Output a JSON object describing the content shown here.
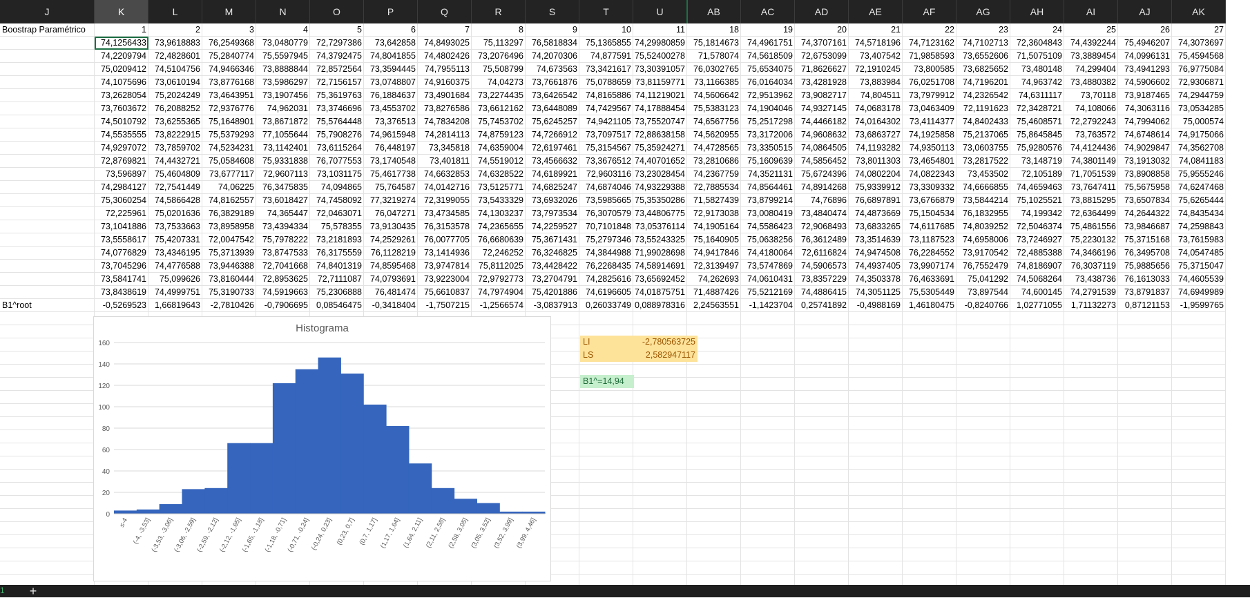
{
  "columns": [
    "J",
    "K",
    "L",
    "M",
    "N",
    "O",
    "P",
    "Q",
    "R",
    "S",
    "T",
    "U",
    "AB",
    "AC",
    "AD",
    "AE",
    "AF",
    "AG",
    "AH",
    "AI",
    "AJ",
    "AK"
  ],
  "selected_column": "K",
  "row_label_header": "Boostrap Paramétrico",
  "header_numbers": [
    "1",
    "2",
    "3",
    "4",
    "5",
    "6",
    "7",
    "8",
    "9",
    "10",
    "11",
    "18",
    "19",
    "20",
    "21",
    "22",
    "23",
    "24",
    "25",
    "26",
    "27"
  ],
  "data_rows": [
    [
      "74,1256433",
      "73,9618883",
      "76,2549368",
      "73,0480779",
      "72,7297386",
      "73,642858",
      "74,8493025",
      "75,113297",
      "76,5818834",
      "75,1365855",
      "74,29980859",
      "75,1814673",
      "74,4961751",
      "74,3707161",
      "74,5718196",
      "74,7123162",
      "74,7102713",
      "72,3604843",
      "74,4392244",
      "75,4946207",
      "74,3073697"
    ],
    [
      "74,2209794",
      "72,4828601",
      "75,2840774",
      "75,5597945",
      "74,3792475",
      "74,8041855",
      "74,4802426",
      "73,2076496",
      "74,2070306",
      "74,877591",
      "75,52400278",
      "71,578074",
      "74,5618509",
      "72,6753099",
      "73,407542",
      "71,9858593",
      "73,6552606",
      "71,5075109",
      "73,3889454",
      "74,0996131",
      "75,4594568"
    ],
    [
      "75,0209412",
      "74,5104756",
      "74,9466346",
      "73,8888844",
      "72,8572564",
      "73,3594445",
      "74,7955113",
      "75,508799",
      "74,673563",
      "73,3421617",
      "73,30391057",
      "76,0302765",
      "75,6534075",
      "71,8626627",
      "72,1910245",
      "73,800585",
      "73,6825652",
      "73,480148",
      "74,299404",
      "73,4941293",
      "76,9775084"
    ],
    [
      "74,1075696",
      "73,0610194",
      "73,8776168",
      "73,5986297",
      "72,7156157",
      "73,0748807",
      "74,9160375",
      "74,04273",
      "73,7661876",
      "75,0788659",
      "73,81159771",
      "73,1166385",
      "76,0164034",
      "73,4281928",
      "73,883984",
      "76,0251708",
      "74,7196201",
      "74,963742",
      "73,4880382",
      "74,5906602",
      "72,9306871"
    ],
    [
      "73,2628054",
      "75,2024249",
      "73,4643951",
      "73,1907456",
      "75,3619763",
      "76,1884637",
      "73,4901684",
      "73,2274435",
      "73,6426542",
      "74,8165886",
      "74,11219021",
      "74,5606642",
      "72,9513962",
      "73,9082717",
      "74,804511",
      "73,7979912",
      "74,2326542",
      "74,6311117",
      "73,70118",
      "73,9187465",
      "74,2944759"
    ],
    [
      "73,7603672",
      "76,2088252",
      "72,9376776",
      "74,962031",
      "73,3746696",
      "73,4553702",
      "73,8276586",
      "73,6612162",
      "73,6448089",
      "74,7429567",
      "74,17888454",
      "75,5383123",
      "74,1904046",
      "74,9327145",
      "74,0683178",
      "73,0463409",
      "72,1191623",
      "72,3428721",
      "74,108066",
      "74,3063116",
      "73,0534285"
    ],
    [
      "74,5010792",
      "73,6255365",
      "75,1648901",
      "73,8671872",
      "75,5764448",
      "73,376513",
      "74,7834208",
      "75,7453702",
      "75,6245257",
      "74,9421105",
      "73,75520747",
      "74,6567756",
      "75,2517298",
      "74,4466182",
      "74,0164302",
      "73,4114377",
      "74,8402433",
      "75,4608571",
      "72,2792243",
      "74,7994062",
      "75,000574"
    ],
    [
      "74,5535555",
      "73,8222915",
      "75,5379293",
      "77,1055644",
      "75,7908276",
      "74,9615948",
      "74,2814113",
      "74,8759123",
      "74,7266912",
      "73,7097517",
      "72,88638158",
      "74,5620955",
      "73,3172006",
      "74,9608632",
      "73,6863727",
      "74,1925858",
      "75,2137065",
      "75,8645845",
      "73,763572",
      "74,6748614",
      "74,9175066"
    ],
    [
      "74,9297072",
      "73,7859702",
      "74,5234231",
      "73,1142401",
      "73,6115264",
      "76,448197",
      "73,345818",
      "74,6359004",
      "72,6197461",
      "75,3154567",
      "75,35924271",
      "74,4728565",
      "73,3350515",
      "74,0864505",
      "74,1193282",
      "74,9350113",
      "73,0603755",
      "75,9280576",
      "74,4124436",
      "74,9029847",
      "74,3562708"
    ],
    [
      "72,8769821",
      "74,4432721",
      "75,0584608",
      "75,9331838",
      "76,7077553",
      "73,1740548",
      "73,401811",
      "74,5519012",
      "73,4566632",
      "73,3676512",
      "74,40701652",
      "73,2810686",
      "75,1609639",
      "74,5856452",
      "73,8011303",
      "73,4654801",
      "73,2817522",
      "73,148719",
      "74,3801149",
      "73,1913032",
      "74,0841183"
    ],
    [
      "73,596897",
      "75,4604809",
      "73,6777117",
      "72,9607113",
      "73,1031175",
      "75,4617738",
      "74,6632853",
      "74,6328522",
      "74,6189921",
      "72,9603116",
      "73,23028454",
      "74,2367759",
      "74,3521131",
      "75,6724396",
      "74,0802204",
      "74,0822343",
      "73,453502",
      "72,105189",
      "71,7051539",
      "73,8908858",
      "75,9555246"
    ],
    [
      "74,2984127",
      "72,7541449",
      "74,06225",
      "76,3475835",
      "74,094865",
      "75,764587",
      "74,0142716",
      "73,5125771",
      "74,6825247",
      "74,6874046",
      "74,93229388",
      "72,7885534",
      "74,8564461",
      "74,8914268",
      "75,9339912",
      "73,3309332",
      "74,6666855",
      "74,4659463",
      "73,7647411",
      "75,5675958",
      "74,6247468"
    ],
    [
      "75,3060254",
      "74,5866428",
      "74,8162557",
      "73,6018427",
      "74,7458092",
      "77,3219274",
      "72,3199055",
      "73,5433329",
      "73,6932026",
      "73,5985665",
      "75,35350286",
      "71,5827439",
      "73,8799214",
      "74,76896",
      "76,6897891",
      "73,6766879",
      "73,5844214",
      "75,1025521",
      "73,8815295",
      "73,6507834",
      "75,6265444"
    ],
    [
      "72,225961",
      "75,0201636",
      "76,3829189",
      "74,365447",
      "72,0463071",
      "76,047271",
      "73,4734585",
      "74,1303237",
      "73,7973534",
      "76,3070579",
      "73,44806775",
      "72,9173038",
      "73,0080419",
      "73,4840474",
      "74,4873669",
      "75,1504534",
      "76,1832955",
      "74,199342",
      "72,6364499",
      "74,2644322",
      "74,8435434"
    ],
    [
      "73,1041886",
      "73,7533663",
      "73,8958958",
      "73,4394334",
      "75,578355",
      "73,9130435",
      "76,3153578",
      "74,2365655",
      "74,2259527",
      "70,7101848",
      "73,05376114",
      "74,1905164",
      "74,5586423",
      "72,9068493",
      "73,6833265",
      "74,6117685",
      "74,8039252",
      "72,5046374",
      "75,4861556",
      "73,9846687",
      "74,2598843"
    ],
    [
      "73,5558617",
      "75,4207331",
      "72,0047542",
      "75,7978222",
      "73,2181893",
      "74,2529261",
      "76,0077705",
      "76,6680639",
      "75,3671431",
      "75,2797346",
      "73,55243325",
      "75,1640905",
      "75,0638256",
      "76,3612489",
      "73,3514639",
      "73,1187523",
      "74,6958006",
      "73,7246927",
      "75,2230132",
      "75,3715168",
      "73,7615983"
    ],
    [
      "74,0776829",
      "73,4346195",
      "75,3713939",
      "73,8747533",
      "76,3175559",
      "76,1128219",
      "73,1414936",
      "72,246252",
      "76,3246825",
      "74,3844988",
      "71,99028698",
      "74,9417846",
      "74,4180064",
      "72,6116824",
      "74,9474508",
      "76,2284552",
      "73,9170542",
      "72,4885388",
      "74,3466196",
      "76,3495708",
      "74,0547485"
    ],
    [
      "73,7045296",
      "74,4776588",
      "73,9446388",
      "72,7041668",
      "74,8401319",
      "74,8595468",
      "73,9747814",
      "75,8112025",
      "73,4428422",
      "76,2268435",
      "74,58914691",
      "72,3139497",
      "73,5747869",
      "74,5906573",
      "74,4937405",
      "73,9907174",
      "76,7552479",
      "74,8186907",
      "76,3037119",
      "75,9885656",
      "75,3715047"
    ],
    [
      "73,5841741",
      "75,099626",
      "73,8160444",
      "72,8953625",
      "72,7111087",
      "74,0793691",
      "73,9223004",
      "72,9792773",
      "73,2704791",
      "74,2825616",
      "73,65692452",
      "74,262693",
      "74,0610431",
      "73,8357229",
      "74,3503378",
      "76,4633691",
      "75,041292",
      "74,5068264",
      "73,438736",
      "76,1613033",
      "74,4605539"
    ],
    [
      "73,8438619",
      "74,4999751",
      "75,3190733",
      "74,5919663",
      "75,2306888",
      "76,481474",
      "75,6610837",
      "74,7974904",
      "75,4201886",
      "74,6196605",
      "74,01875751",
      "71,4887426",
      "75,5212169",
      "74,4886415",
      "74,3051125",
      "75,5305449",
      "73,897544",
      "74,600145",
      "74,2791539",
      "73,8791837",
      "74,6949989"
    ]
  ],
  "root_label": "B1^root",
  "root_row": [
    "-0,5269523",
    "1,66819643",
    "-2,7810426",
    "-0,7906695",
    "0,08546475",
    "-0,3418404",
    "-1,7507215",
    "-1,2566574",
    "-3,0837913",
    "0,26033749",
    "0,088978316",
    "2,24563551",
    "-1,1423704",
    "0,25741892",
    "-0,4988169",
    "1,46180475",
    "-0,8240766",
    "1,02771055",
    "1,71132273",
    "0,87121153",
    "-1,9599765"
  ],
  "limits": {
    "li_label": "LI",
    "li_value": "-2,780563725",
    "ls_label": "LS",
    "ls_value": "2,582947117"
  },
  "estimate": "B1^=14,94",
  "colors": {
    "bar": "#3565bd",
    "highlight_yellow": "#fde29a",
    "highlight_text": "#9c5700",
    "estimate_green": "#c6efce",
    "estimate_text": "#1e6b38",
    "selection": "#1d7044"
  },
  "chart_data": {
    "type": "bar",
    "title": "Histograma",
    "categories": [
      "≤-4",
      "(-4, -3,53]",
      "(-3,53, -3,06]",
      "(-3,06, -2,59]",
      "(-2,59, -2,12]",
      "(-2,12, -1,65]",
      "(-1,65, -1,18]",
      "(-1,18, -0,71]",
      "(-0,71, -0,24]",
      "(-0,24, 0,23]",
      "(0,23, 0,7]",
      "(0,7, 1,17]",
      "(1,17, 1,64]",
      "(1,64, 2,11]",
      "(2,11, 2,58]",
      "(2,58, 3,05]",
      "(3,05, 3,52]",
      "(3,52, 3,99]",
      "(3,99, 4,46]"
    ],
    "values": [
      3,
      4,
      9,
      23,
      24,
      66,
      66,
      122,
      135,
      146,
      131,
      102,
      82,
      47,
      24,
      14,
      10,
      2,
      2
    ],
    "label_every": 1,
    "ylim": [
      0,
      160
    ],
    "yticks": [
      "0",
      "20",
      "40",
      "60",
      "80",
      "100",
      "120",
      "140",
      "160"
    ],
    "grid": true,
    "xlabel": "",
    "ylabel": ""
  },
  "sheet_tab_number": "1",
  "add_sheet_label": "+"
}
